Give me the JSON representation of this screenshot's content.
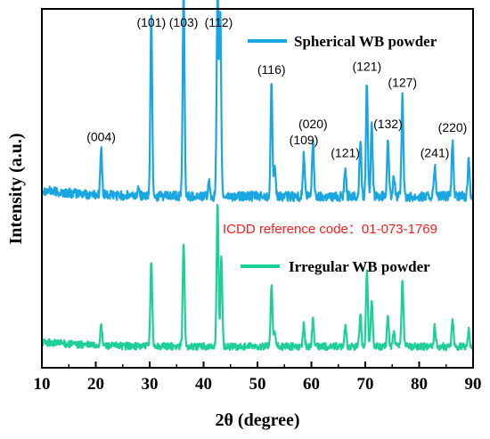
{
  "chart_data": {
    "type": "line",
    "xlabel": "2θ (degree)",
    "ylabel": "Intensity (a.u.)",
    "xlim": [
      10,
      90
    ],
    "x_ticks": [
      "10",
      "20",
      "30",
      "40",
      "50",
      "60",
      "70",
      "80",
      "90"
    ],
    "y_ticks_shown": false,
    "grid": false,
    "legend_placement": "per-curve, top-right of each trace",
    "annotation": {
      "text": "ICDD reference code：01-073-1769",
      "color": "#ff1a1a"
    },
    "series": [
      {
        "name": "Spherical WB powder",
        "color": "#1aa6e0",
        "baseline": 0.04,
        "peaks": [
          {
            "x": 21.0,
            "y": 0.14
          },
          {
            "x": 28.0,
            "y": 0.03
          },
          {
            "x": 30.3,
            "y": 0.56
          },
          {
            "x": 36.3,
            "y": 0.65
          },
          {
            "x": 41.0,
            "y": 0.04
          },
          {
            "x": 42.6,
            "y": 0.64
          },
          {
            "x": 43.1,
            "y": 0.58
          },
          {
            "x": 52.6,
            "y": 0.35
          },
          {
            "x": 53.2,
            "y": 0.08
          },
          {
            "x": 58.6,
            "y": 0.13
          },
          {
            "x": 60.3,
            "y": 0.18
          },
          {
            "x": 66.3,
            "y": 0.09
          },
          {
            "x": 69.1,
            "y": 0.18
          },
          {
            "x": 70.3,
            "y": 0.36
          },
          {
            "x": 71.2,
            "y": 0.22
          },
          {
            "x": 74.2,
            "y": 0.18
          },
          {
            "x": 75.3,
            "y": 0.07
          },
          {
            "x": 76.9,
            "y": 0.31
          },
          {
            "x": 82.9,
            "y": 0.09
          },
          {
            "x": 86.2,
            "y": 0.17
          },
          {
            "x": 89.2,
            "y": 0.12
          }
        ]
      },
      {
        "name": "Irregular WB powder",
        "color": "#1ecf98",
        "baseline": 0.04,
        "peaks": [
          {
            "x": 21.0,
            "y": 0.08
          },
          {
            "x": 30.3,
            "y": 0.36
          },
          {
            "x": 36.3,
            "y": 0.44
          },
          {
            "x": 42.6,
            "y": 0.6
          },
          {
            "x": 43.3,
            "y": 0.38
          },
          {
            "x": 52.6,
            "y": 0.25
          },
          {
            "x": 53.2,
            "y": 0.06
          },
          {
            "x": 58.6,
            "y": 0.09
          },
          {
            "x": 60.3,
            "y": 0.11
          },
          {
            "x": 66.3,
            "y": 0.08
          },
          {
            "x": 69.1,
            "y": 0.14
          },
          {
            "x": 70.3,
            "y": 0.32
          },
          {
            "x": 71.2,
            "y": 0.2
          },
          {
            "x": 74.2,
            "y": 0.13
          },
          {
            "x": 75.3,
            "y": 0.06
          },
          {
            "x": 76.9,
            "y": 0.28
          },
          {
            "x": 82.9,
            "y": 0.08
          },
          {
            "x": 86.2,
            "y": 0.11
          },
          {
            "x": 89.2,
            "y": 0.07
          }
        ]
      }
    ],
    "peak_labels": [
      {
        "text": "(004)",
        "x": 21.0
      },
      {
        "text": "(101)",
        "x": 30.3
      },
      {
        "text": "(103)",
        "x": 36.3
      },
      {
        "text": "(112)",
        "x": 42.8
      },
      {
        "text": "(116)",
        "x": 52.6
      },
      {
        "text": "(109)",
        "x": 58.6
      },
      {
        "text": "(020)",
        "x": 60.3
      },
      {
        "text": "(121)",
        "x": 66.3
      },
      {
        "text": "(121)",
        "x": 70.3
      },
      {
        "text": "(132)",
        "x": 74.2
      },
      {
        "text": "(127)",
        "x": 76.9
      },
      {
        "text": "(241)",
        "x": 82.9
      },
      {
        "text": "(220)",
        "x": 86.2
      }
    ]
  }
}
